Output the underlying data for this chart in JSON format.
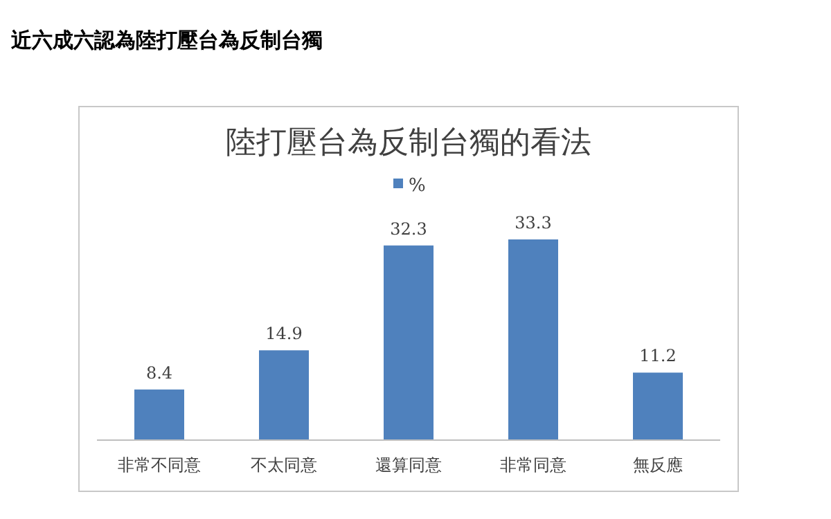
{
  "chart_data": {
    "type": "bar",
    "title": "陸打壓台為反制台獨的看法",
    "annotations": [
      "近六成六認為陸打壓台為反制台獨"
    ],
    "categories": [
      "非常不同意",
      "不太同意",
      "還算同意",
      "非常同意",
      "無反應"
    ],
    "series": [
      {
        "name": "%",
        "color": "#4f81bd",
        "values": [
          8.4,
          14.9,
          32.3,
          33.3,
          11.2
        ]
      }
    ],
    "data_labels": true,
    "legend": "top"
  }
}
